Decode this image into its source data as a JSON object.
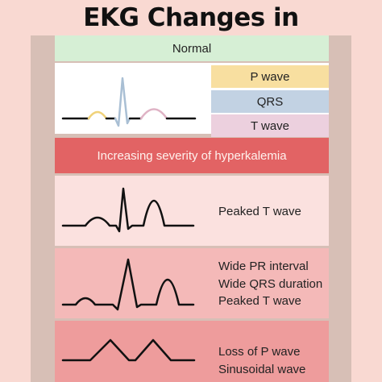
{
  "title": "EKG Changes in hyperkalemia",
  "normal": {
    "header": "Normal",
    "legend": [
      {
        "label": "P wave",
        "color": "#f8dfa0"
      },
      {
        "label": "QRS",
        "color": "#c2d2e3"
      },
      {
        "label": "T wave",
        "color": "#ecd0de"
      }
    ]
  },
  "severity_label": "Increasing severity of hyperkalemia",
  "stages": [
    {
      "lines": [
        "Peaked T wave"
      ]
    },
    {
      "lines": [
        "Wide PR interval",
        "Wide QRS duration",
        "Peaked T wave"
      ]
    },
    {
      "lines": [
        "Loss of P wave",
        "Sinusoidal wave"
      ]
    }
  ],
  "colors": {
    "background": "#f9d9d2",
    "severity": "#e26364",
    "stage1": "#fbe1df",
    "stage2": "#f4b9b8",
    "stage3": "#ee9c9c",
    "normal_header": "#d6efd5"
  }
}
